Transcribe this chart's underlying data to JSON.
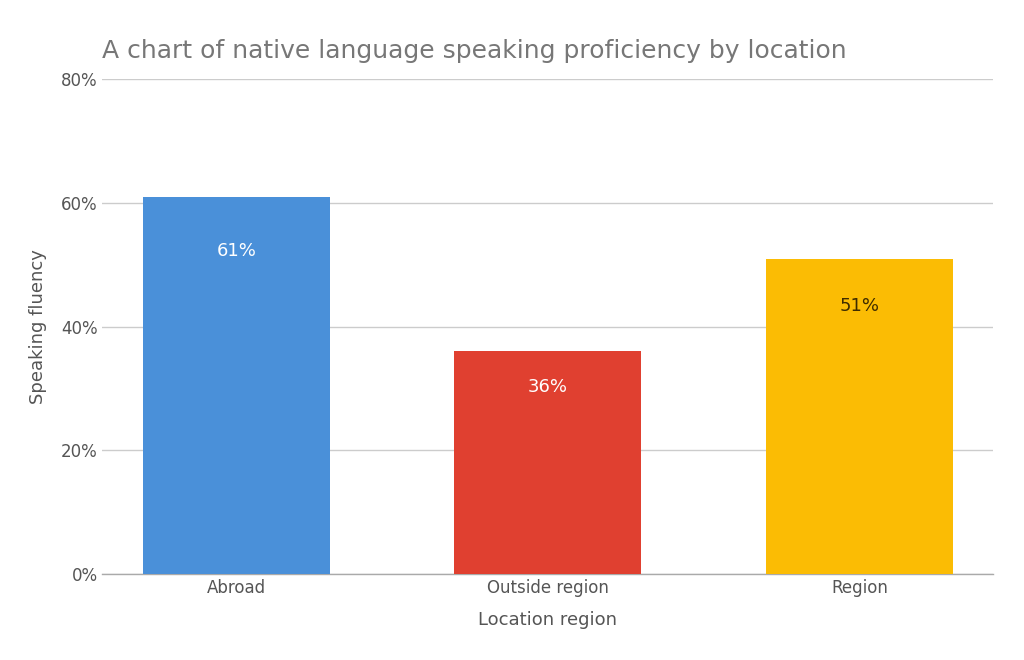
{
  "title": "A chart of native language speaking proficiency by location",
  "categories": [
    "Abroad",
    "Outside region",
    "Region"
  ],
  "values": [
    61,
    36,
    51
  ],
  "bar_colors": [
    "#4A90D9",
    "#E04030",
    "#FBBC04"
  ],
  "bar_labels": [
    "61%",
    "36%",
    "51%"
  ],
  "label_colors": [
    "#ffffff",
    "#ffffff",
    "#3d2b00"
  ],
  "xlabel": "Location region",
  "ylabel": "Speaking fluency",
  "ylim": [
    0,
    80
  ],
  "yticks": [
    0,
    20,
    40,
    60,
    80
  ],
  "ytick_labels": [
    "0%",
    "20%",
    "40%",
    "60%",
    "80%"
  ],
  "background_color": "#ffffff",
  "title_color": "#777777",
  "grid_color": "#cccccc",
  "title_fontsize": 18,
  "axis_label_fontsize": 13,
  "tick_fontsize": 12,
  "bar_label_fontsize": 13,
  "bar_width": 0.6
}
